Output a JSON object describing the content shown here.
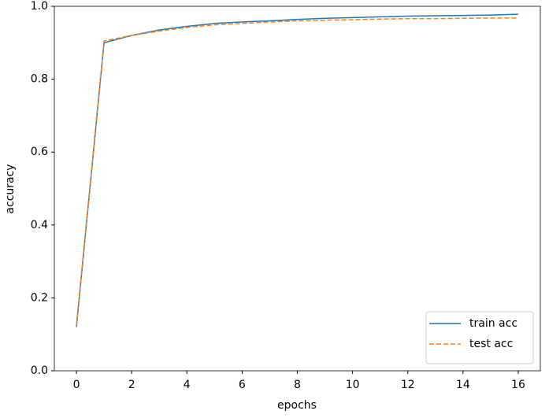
{
  "chart_data": {
    "type": "line",
    "xlabel": "epochs",
    "ylabel": "accuracy",
    "x": [
      0,
      1,
      2,
      3,
      4,
      5,
      6,
      7,
      8,
      9,
      10,
      11,
      12,
      13,
      14,
      15,
      16
    ],
    "series": [
      {
        "name": "train acc",
        "color": "#1f77b4",
        "linestyle": "solid",
        "values": [
          0.12,
          0.9,
          0.92,
          0.935,
          0.945,
          0.953,
          0.957,
          0.96,
          0.964,
          0.967,
          0.969,
          0.971,
          0.973,
          0.974,
          0.975,
          0.976,
          0.978
        ]
      },
      {
        "name": "test acc",
        "color": "#ff7f0e",
        "linestyle": "dashed",
        "values": [
          0.125,
          0.905,
          0.92,
          0.932,
          0.942,
          0.949,
          0.953,
          0.957,
          0.96,
          0.962,
          0.963,
          0.965,
          0.966,
          0.966,
          0.967,
          0.968,
          0.968
        ]
      }
    ],
    "xlim": [
      -0.8,
      16.8
    ],
    "xticks": [
      0,
      2,
      4,
      6,
      8,
      10,
      12,
      14,
      16
    ],
    "ylim": [
      0,
      1
    ],
    "yticks": [
      {
        "value": 0,
        "label": "0.0"
      },
      0.2,
      0.4,
      0.6,
      0.8,
      {
        "value": 1,
        "label": "1.0"
      }
    ],
    "grid": false,
    "legend": "lower right"
  }
}
